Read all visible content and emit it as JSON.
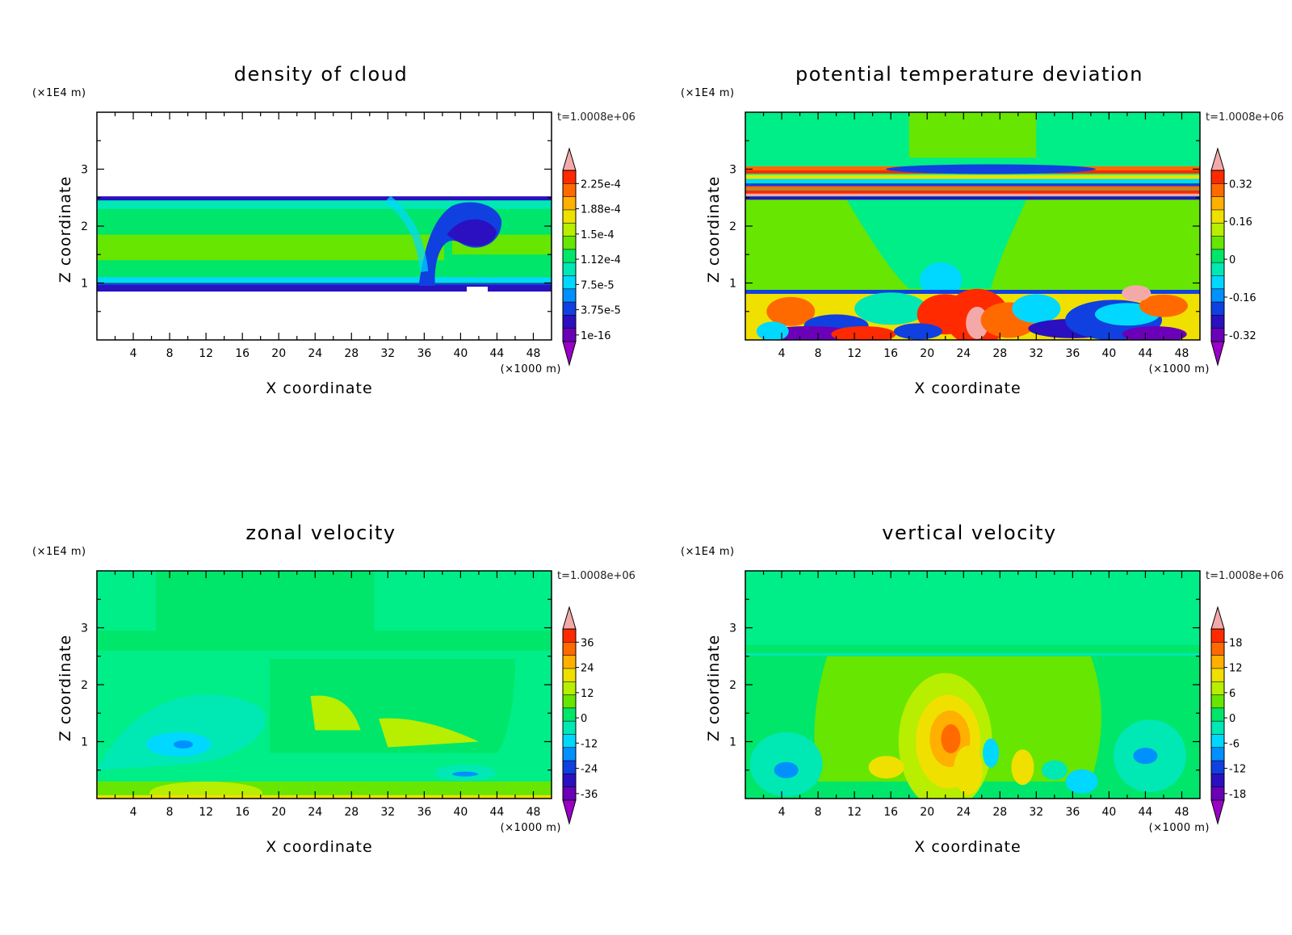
{
  "chart_data": [
    {
      "type": "heatmap",
      "title": "density of cloud",
      "xlabel": "X coordinate",
      "ylabel": "Z coordinate",
      "x_unit": "(×1000 m)",
      "y_unit": "(×1E4 m)",
      "x_ticks": [
        "4",
        "8",
        "12",
        "16",
        "20",
        "24",
        "28",
        "32",
        "36",
        "40",
        "44",
        "48"
      ],
      "y_ticks": [
        "1",
        "2",
        "3"
      ],
      "xlim": [
        0,
        50
      ],
      "ylim": [
        0,
        4
      ],
      "time_label": "t=1.0008e+06",
      "colorbar_labels": [
        "2.25e-4",
        "1.88e-4",
        "1.5e-4",
        "1.12e-4",
        "7.5e-5",
        "3.75e-5",
        "1e-16"
      ],
      "colors": [
        "#f4a9a9",
        "#ff2a00",
        "#ff6a00",
        "#ffb000",
        "#f0e000",
        "#b8ee00",
        "#66e600",
        "#00e66a",
        "#00e8b4",
        "#00d8ff",
        "#0090ff",
        "#1040e0",
        "#2a10c0",
        "#6a00b8",
        "#9a00c8"
      ],
      "features": {
        "band_low": 0.85,
        "band_high": 2.48,
        "background_color": "#00ee88",
        "core_color": "#66e600"
      }
    },
    {
      "type": "heatmap",
      "title": "potential temperature deviation",
      "xlabel": "X coordinate",
      "ylabel": "Z coordinate",
      "x_unit": "(×1000 m)",
      "y_unit": "(×1E4 m)",
      "x_ticks": [
        "4",
        "8",
        "12",
        "16",
        "20",
        "24",
        "28",
        "32",
        "36",
        "40",
        "44",
        "48"
      ],
      "y_ticks": [
        "1",
        "2",
        "3"
      ],
      "xlim": [
        0,
        50
      ],
      "ylim": [
        0,
        4
      ],
      "time_label": "t=1.0008e+06",
      "colorbar_labels": [
        "0.32",
        "0.16",
        "0",
        "-0.16",
        "-0.32"
      ],
      "colors": [
        "#f4a9a9",
        "#ff2a00",
        "#ff6a00",
        "#ffb000",
        "#f0e000",
        "#b8ee00",
        "#66e600",
        "#00e66a",
        "#00e8b4",
        "#00d8ff",
        "#0090ff",
        "#1040e0",
        "#2a10c0",
        "#6a00b8",
        "#9a00c8"
      ],
      "features": {
        "background_color": "#00ee88",
        "mid_color": "#66e600"
      }
    },
    {
      "type": "heatmap",
      "title": "zonal velocity",
      "xlabel": "X coordinate",
      "ylabel": "Z coordinate",
      "x_unit": "(×1000 m)",
      "y_unit": "(×1E4 m)",
      "x_ticks": [
        "4",
        "8",
        "12",
        "16",
        "20",
        "24",
        "28",
        "32",
        "36",
        "40",
        "44",
        "48"
      ],
      "y_ticks": [
        "1",
        "2",
        "3"
      ],
      "xlim": [
        0,
        50
      ],
      "ylim": [
        0,
        4
      ],
      "time_label": "t=1.0008e+06",
      "colorbar_labels": [
        "36",
        "24",
        "12",
        "0",
        "-12",
        "-24",
        "-36"
      ],
      "colors": [
        "#f4a9a9",
        "#ff2a00",
        "#ff6a00",
        "#ffb000",
        "#f0e000",
        "#b8ee00",
        "#66e600",
        "#00e66a",
        "#00e8b4",
        "#00d8ff",
        "#0090ff",
        "#1040e0",
        "#2a10c0",
        "#6a00b8",
        "#9a00c8"
      ],
      "features": {
        "background_color": "#00ee88",
        "mid_color": "#00e66a"
      }
    },
    {
      "type": "heatmap",
      "title": "vertical velocity",
      "xlabel": "X coordinate",
      "ylabel": "Z coordinate",
      "x_unit": "(×1000 m)",
      "y_unit": "(×1E4 m)",
      "x_ticks": [
        "4",
        "8",
        "12",
        "16",
        "20",
        "24",
        "28",
        "32",
        "36",
        "40",
        "44",
        "48"
      ],
      "y_ticks": [
        "1",
        "2",
        "3"
      ],
      "xlim": [
        0,
        50
      ],
      "ylim": [
        0,
        4
      ],
      "time_label": "t=1.0008e+06",
      "colorbar_labels": [
        "18",
        "12",
        "6",
        "0",
        "-6",
        "-12",
        "-18"
      ],
      "colors": [
        "#f4a9a9",
        "#ff2a00",
        "#ff6a00",
        "#ffb000",
        "#f0e000",
        "#b8ee00",
        "#66e600",
        "#00e66a",
        "#00e8b4",
        "#00d8ff",
        "#0090ff",
        "#1040e0",
        "#2a10c0",
        "#6a00b8",
        "#9a00c8"
      ],
      "features": {
        "background_color": "#00ee88",
        "mid_color": "#66e600"
      }
    }
  ]
}
